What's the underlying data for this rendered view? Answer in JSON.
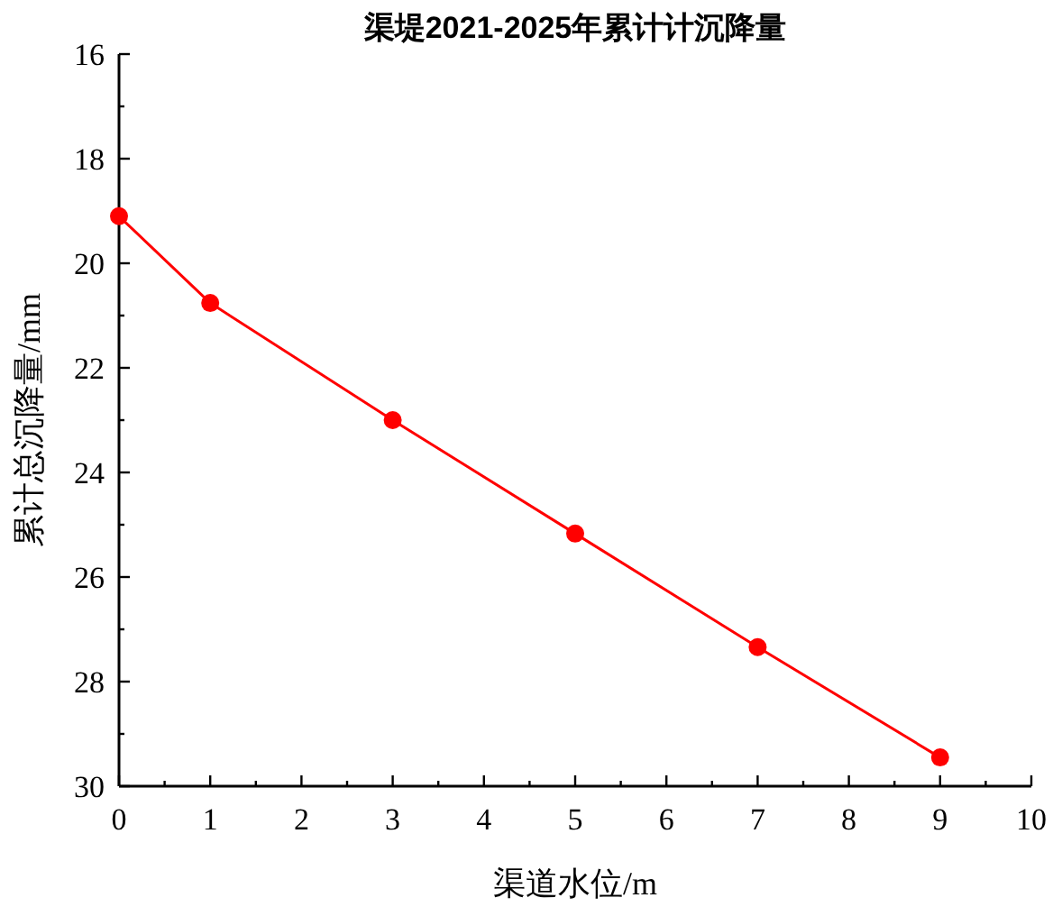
{
  "chart_data": {
    "type": "line",
    "title": "渠堤2021-2025年累计计沉降量",
    "xlabel": "渠道水位/m",
    "ylabel": "累计总沉降量/mm",
    "x": [
      0,
      1,
      3,
      5,
      7,
      9
    ],
    "series": [
      {
        "color": "#ff0000",
        "values": [
          19.1,
          20.76,
          23.0,
          25.17,
          27.34,
          29.45
        ]
      }
    ],
    "xlim": [
      0,
      10
    ],
    "xticks": [
      0,
      1,
      2,
      3,
      4,
      5,
      6,
      7,
      8,
      9,
      10
    ],
    "ylim": [
      30,
      16
    ],
    "yticks": [
      16,
      18,
      20,
      22,
      24,
      26,
      28,
      30
    ],
    "marker": "circle",
    "line_style": "solid"
  }
}
